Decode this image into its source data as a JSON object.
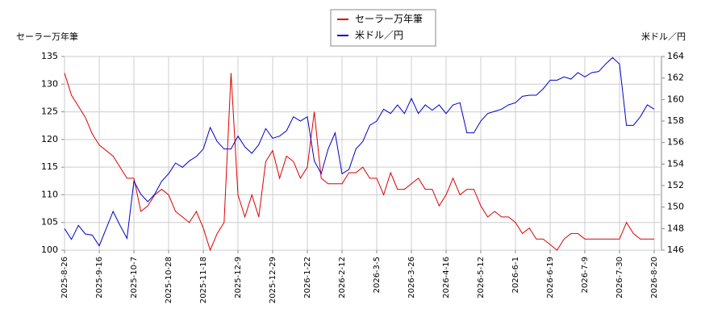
{
  "chart_data": {
    "type": "line",
    "y_label": "セーラー万年筆",
    "y2_label": "米ドル／円",
    "categories": [
      "2025-8-26",
      null,
      null,
      null,
      null,
      "2025-9-16",
      null,
      null,
      null,
      null,
      "2025-10-7",
      null,
      null,
      null,
      null,
      "2025-10-28",
      null,
      null,
      null,
      null,
      "2025-11-18",
      null,
      null,
      null,
      null,
      "2025-12-9",
      null,
      null,
      null,
      null,
      "2025-12-29",
      null,
      null,
      null,
      null,
      "2026-1-22",
      null,
      null,
      null,
      null,
      "2026-2-12",
      null,
      null,
      null,
      null,
      "2026-3-5",
      null,
      null,
      null,
      null,
      "2026-3-26",
      null,
      null,
      null,
      null,
      "2026-4-16",
      null,
      null,
      null,
      null,
      "2026-5-12",
      null,
      null,
      null,
      null,
      "2026-6-1",
      null,
      null,
      null,
      null,
      "2026-6-19",
      null,
      null,
      null,
      null,
      "2026-7-9",
      null,
      null,
      null,
      null,
      "2026-7-30",
      null,
      null,
      null,
      null,
      "2026-8-20"
    ],
    "series": [
      {
        "name": "セーラー万年筆",
        "color": "#dd0000",
        "axis": "y",
        "values": [
          132,
          128,
          126,
          124,
          121,
          119,
          118,
          117,
          115,
          113,
          113,
          107,
          108,
          110,
          111,
          110,
          107,
          106,
          105,
          107,
          104,
          100,
          103,
          105,
          132,
          110,
          106,
          110,
          106,
          116,
          118,
          113,
          117,
          116,
          113,
          115,
          125,
          113,
          112,
          112,
          112,
          114,
          114,
          115,
          113,
          113,
          110,
          114,
          111,
          111,
          112,
          113,
          111,
          111,
          108,
          110,
          113,
          110,
          111,
          111,
          108,
          106,
          107,
          106,
          106,
          105,
          103,
          104,
          102,
          102,
          101,
          100,
          102,
          103,
          103,
          102,
          102,
          102,
          102,
          102,
          102,
          105,
          103,
          102,
          102,
          102
        ]
      },
      {
        "name": "米ドル／円",
        "color": "#0000cc",
        "axis": "y2",
        "values": [
          148,
          147,
          148.3,
          147.5,
          147.4,
          146.4,
          148,
          149.6,
          148.3,
          147.1,
          152.4,
          151.2,
          150.5,
          151.2,
          152.4,
          153.1,
          154.1,
          153.7,
          154.3,
          154.7,
          155.4,
          157.4,
          156.1,
          155.4,
          155.4,
          156.6,
          155.6,
          155,
          155.8,
          157.3,
          156.4,
          156.6,
          157.1,
          158.4,
          158,
          158.4,
          154.3,
          153.1,
          155.4,
          156.9,
          153.1,
          153.5,
          155.4,
          156.1,
          157.6,
          158,
          159.1,
          158.7,
          159.5,
          158.7,
          160.1,
          158.7,
          159.5,
          159,
          159.5,
          158.7,
          159.5,
          159.7,
          156.9,
          156.9,
          158,
          158.7,
          158.9,
          159.1,
          159.5,
          159.7,
          160.3,
          160.4,
          160.4,
          161,
          161.8,
          161.8,
          162.1,
          161.9,
          162.5,
          162.1,
          162.5,
          162.6,
          163.3,
          163.9,
          163.3,
          157.6,
          157.6,
          158.4,
          159.5,
          159.1
        ]
      }
    ],
    "ylim": [
      100,
      135
    ],
    "yticks": [
      100,
      105,
      110,
      115,
      120,
      125,
      130,
      135
    ],
    "y2lim": [
      146,
      164
    ],
    "y2ticks": [
      146,
      148,
      150,
      152,
      154,
      156,
      158,
      160,
      162,
      164
    ],
    "grid": true,
    "legend": "top"
  }
}
